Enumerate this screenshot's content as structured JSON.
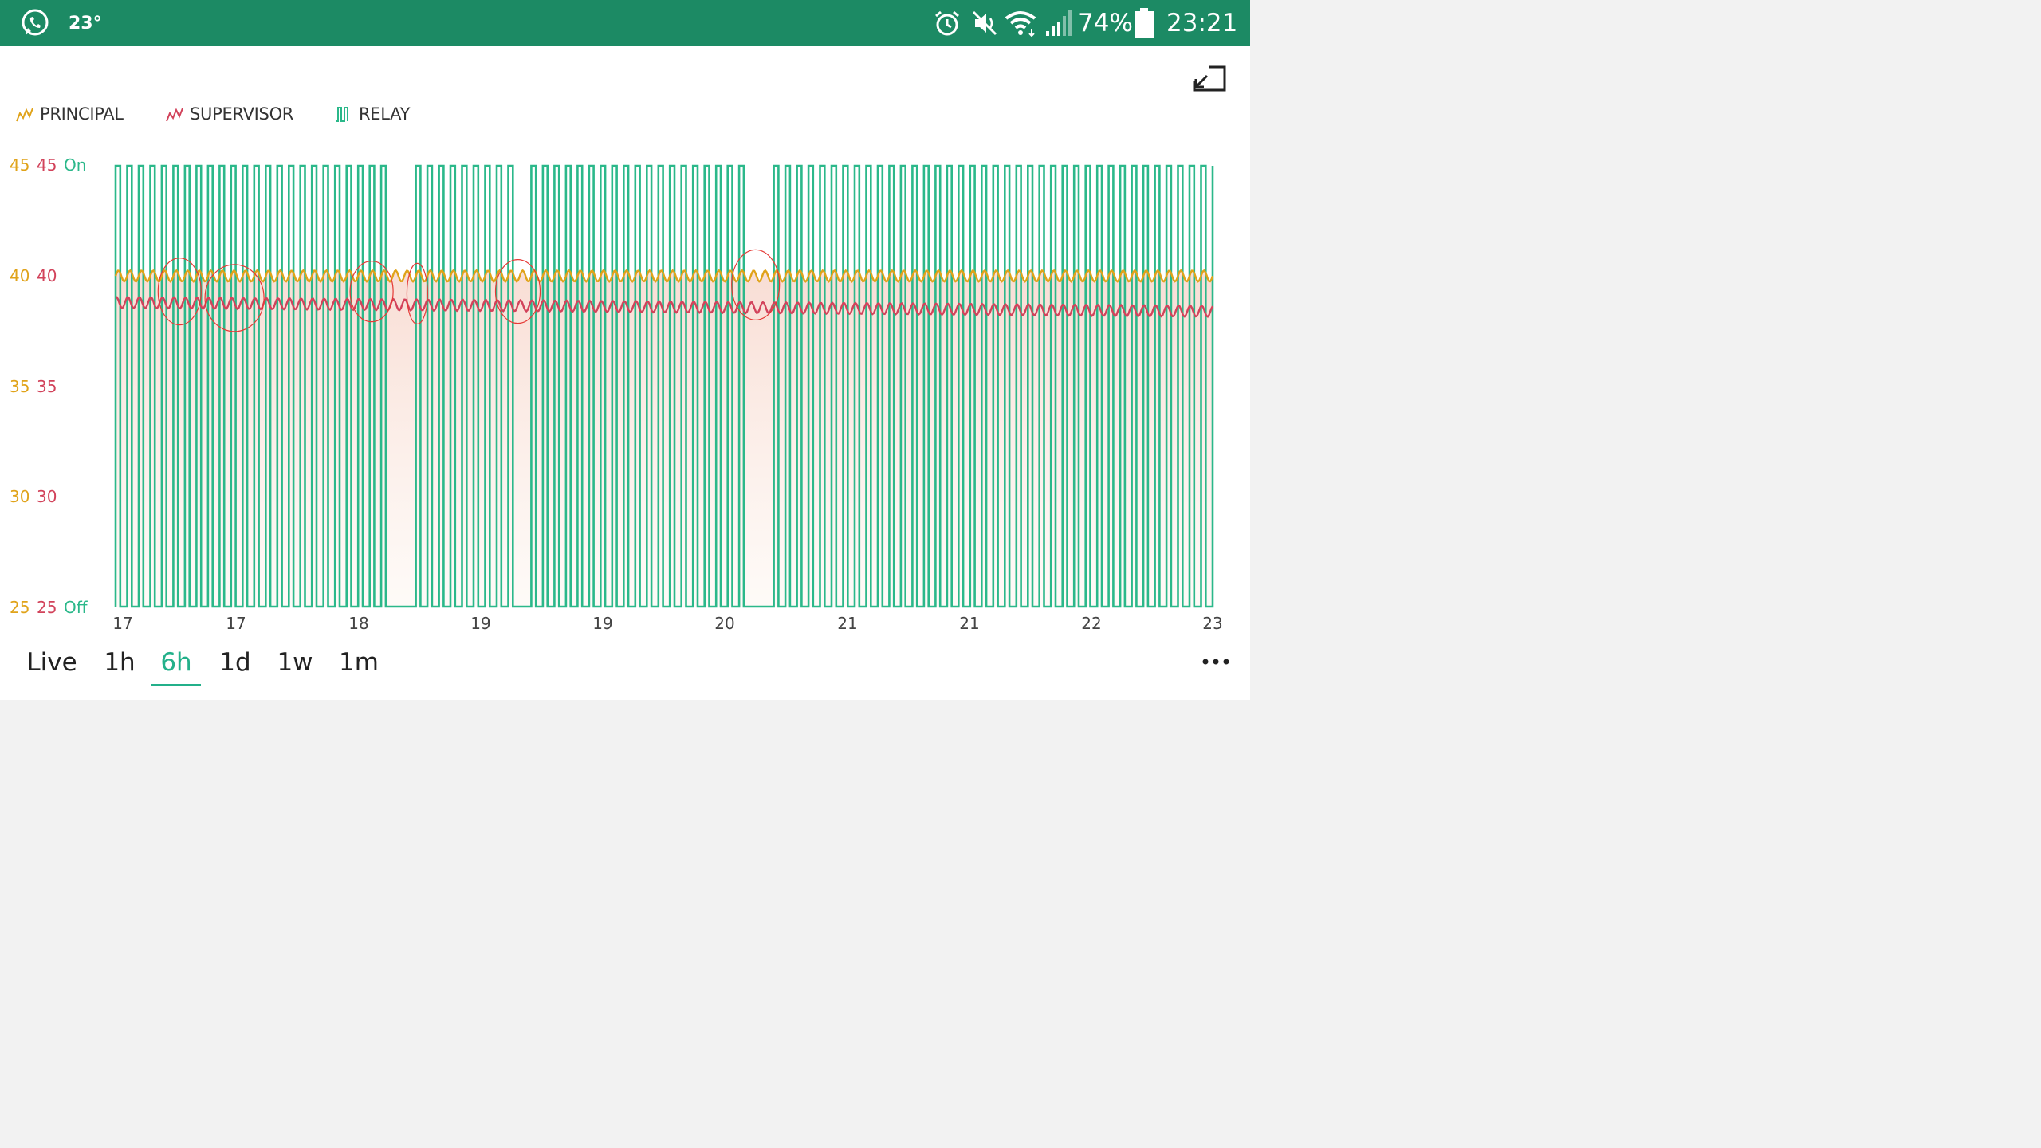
{
  "status_bar": {
    "temperature": "23°",
    "battery": "74%",
    "time": "23:21",
    "left_icons": [
      "whatsapp-icon"
    ],
    "right_icons": [
      "alarm-icon",
      "mute-icon",
      "wifi-icon",
      "signal-icon",
      "battery-icon"
    ]
  },
  "toolbar": {
    "fullscreen_icon": "exit-fullscreen-icon"
  },
  "legend": [
    {
      "label": "PRINCIPAL",
      "color": "#e0a31a",
      "icon": "line-chart-icon"
    },
    {
      "label": "SUPERVISOR",
      "color": "#d2435b",
      "icon": "line-chart-icon"
    },
    {
      "label": "RELAY",
      "color": "#2bb88a",
      "icon": "step-chart-icon"
    }
  ],
  "y_axis": {
    "principal": [
      "45",
      "40",
      "35",
      "30",
      "25"
    ],
    "supervisor": [
      "45",
      "40",
      "35",
      "30",
      "25"
    ],
    "relay": [
      "On",
      "Off"
    ]
  },
  "x_axis": [
    "17",
    "17",
    "18",
    "19",
    "19",
    "20",
    "21",
    "21",
    "22",
    "23"
  ],
  "range_selector": {
    "options": [
      "Live",
      "1h",
      "6h",
      "1d",
      "1w",
      "1m"
    ],
    "selected": "6h",
    "more_icon": "more-horizontal-icon"
  },
  "chart_data": {
    "type": "line",
    "y_range": [
      25,
      45
    ],
    "x_range_hours": [
      17,
      23
    ],
    "series": [
      {
        "name": "PRINCIPAL",
        "color": "#e0a31a",
        "mean": 40.0,
        "amplitude": 0.25,
        "cycles": 95
      },
      {
        "name": "SUPERVISOR",
        "color": "#d2435b",
        "mean_start": 38.8,
        "mean_end": 38.4,
        "amplitude": 0.25,
        "cycles": 95
      },
      {
        "name": "RELAY",
        "color": "#2bb88a",
        "kind": "step",
        "states": [
          "Off",
          "On"
        ],
        "pulses": 95,
        "gaps_at_hour": [
          18.55,
          19.2,
          20.5
        ]
      }
    ],
    "annotations": [
      {
        "type": "ellipse",
        "color": "#e53935",
        "hour": 17.65,
        "value": 39
      },
      {
        "type": "ellipse",
        "color": "#e53935",
        "hour": 17.35,
        "value": 39.3
      },
      {
        "type": "ellipse",
        "color": "#e53935",
        "hour": 18.4,
        "value": 39.3
      },
      {
        "type": "ellipse",
        "color": "#e53935",
        "hour": 18.65,
        "value": 39.2
      },
      {
        "type": "ellipse",
        "color": "#e53935",
        "hour": 19.2,
        "value": 39.3
      },
      {
        "type": "ellipse",
        "color": "#e53935",
        "hour": 20.5,
        "value": 39.6
      }
    ]
  }
}
